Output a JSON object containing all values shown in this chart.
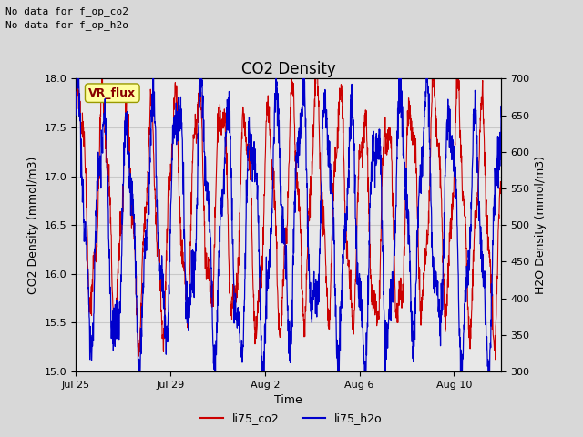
{
  "title": "CO2 Density",
  "xlabel": "Time",
  "ylabel_left": "CO2 Density (mmol/m3)",
  "ylabel_right": "H2O Density (mmol/m3)",
  "ylim_left": [
    15.0,
    18.0
  ],
  "ylim_right": [
    300,
    700
  ],
  "yticks_left": [
    15.0,
    15.5,
    16.0,
    16.5,
    17.0,
    17.5,
    18.0
  ],
  "yticks_right": [
    300,
    350,
    400,
    450,
    500,
    550,
    600,
    650,
    700
  ],
  "xtick_labels": [
    "Jul 25",
    "Jul 29",
    "Aug 2",
    "Aug 6",
    "Aug 10"
  ],
  "xtick_positions": [
    0,
    4,
    8,
    12,
    16
  ],
  "xlim": [
    0,
    18.0
  ],
  "annotation_lines": [
    "No data for f_op_co2",
    "No data for f_op_h2o"
  ],
  "vr_flux_label": "VR_flux",
  "legend_entries": [
    "li75_co2",
    "li75_h2o"
  ],
  "co2_color": "#cc0000",
  "h2o_color": "#0000cc",
  "background_color": "#d8d8d8",
  "plot_bg_color": "#e8e8e8",
  "grid_color": "#c8c8c8",
  "vr_flux_bg": "#ffffa0",
  "vr_flux_text_color": "#880000",
  "n_points": 2000,
  "seed": 42,
  "total_days": 18.0
}
